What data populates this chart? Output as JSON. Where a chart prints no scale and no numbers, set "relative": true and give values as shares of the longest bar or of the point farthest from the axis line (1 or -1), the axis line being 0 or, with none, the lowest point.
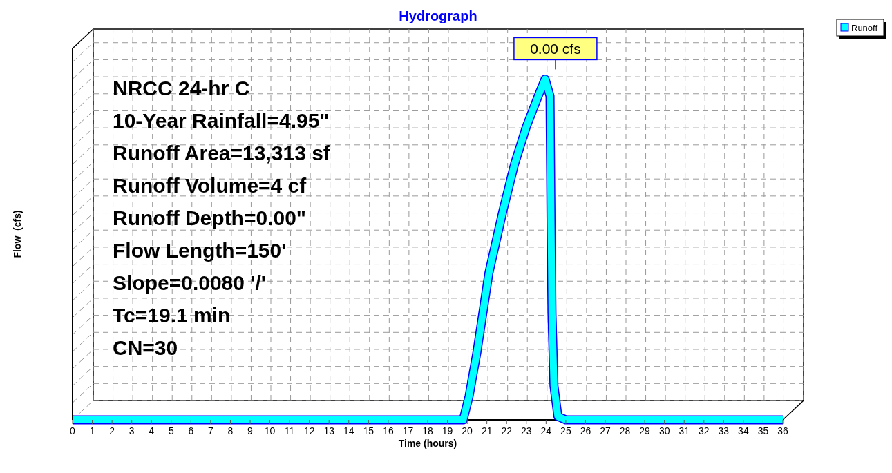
{
  "chart_data": {
    "type": "line",
    "title": "Hydrograph",
    "xlabel": "Time  (hours)",
    "ylabel": "Flow  (cfs)",
    "relative": true,
    "x": [
      0,
      19.8,
      20.1,
      20.5,
      21.1,
      21.8,
      22.4,
      23.0,
      23.6,
      23.95,
      24.2,
      24.25,
      24.3,
      24.4,
      24.6,
      25,
      36
    ],
    "series": [
      {
        "name": "Runoff",
        "color": "#00ffff",
        "values": [
          0,
          0,
          0.07,
          0.2,
          0.43,
          0.61,
          0.75,
          0.86,
          0.95,
          1,
          0.95,
          0.59,
          0.31,
          0.1,
          0.01,
          0,
          0
        ]
      }
    ],
    "xlim": [
      0,
      36
    ],
    "xticks": [
      0,
      1,
      2,
      3,
      4,
      5,
      6,
      7,
      8,
      9,
      10,
      11,
      12,
      13,
      14,
      15,
      16,
      17,
      18,
      19,
      20,
      21,
      22,
      23,
      24,
      25,
      26,
      27,
      28,
      29,
      30,
      31,
      32,
      33,
      34,
      35,
      36
    ],
    "grid": true,
    "legend": "top right",
    "annotations": [
      {
        "text": "0.00 cfs",
        "x": 23.95,
        "y": 1
      },
      "NRCC 24-hr C",
      "10-Year Rainfall=4.95\"",
      "Runoff Area=13,313 sf",
      "Runoff Volume=4 cf",
      "Runoff Depth=0.00\"",
      "Flow Length=150'",
      "Slope=0.0080 '/'",
      "Tc=19.1 min",
      "CN=30"
    ]
  }
}
